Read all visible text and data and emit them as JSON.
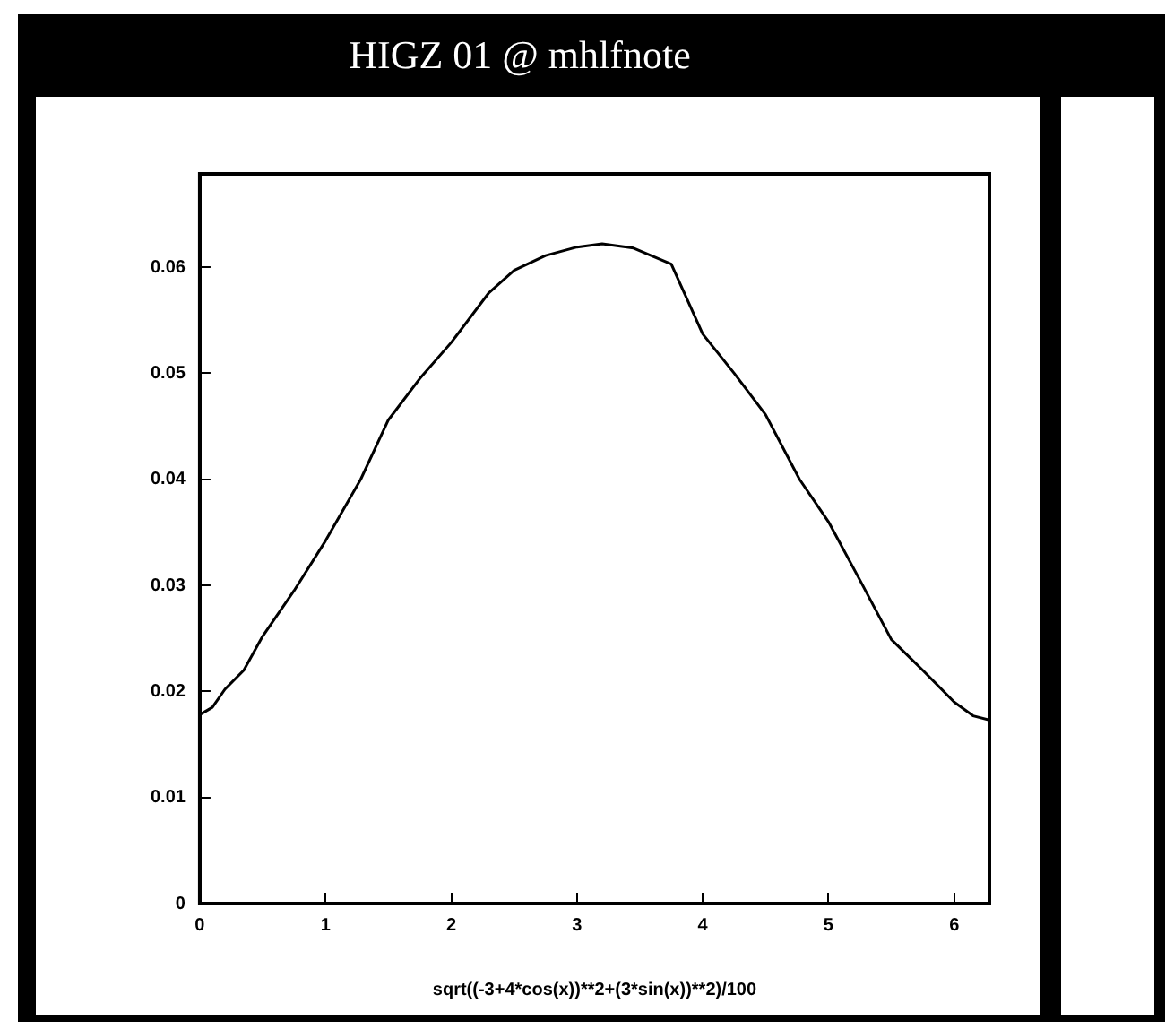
{
  "chart_data": {
    "type": "line",
    "title": "HIGZ 01 @ mhlfnote",
    "xlabel": "sqrt((-3+4*cos(x))**2+(3*sin(x))**2)/100",
    "x": [
      0,
      0.1,
      0.2,
      0.35,
      0.5,
      0.75,
      1,
      1.28,
      1.5,
      1.75,
      2,
      2.3,
      2.5,
      2.75,
      3,
      3.2,
      3.45,
      3.75,
      4,
      4.25,
      4.5,
      4.77,
      5,
      5.25,
      5.5,
      5.75,
      6,
      6.15,
      6.28
    ],
    "series": [
      {
        "color": "#000000",
        "values": [
          0.0178,
          0.0185,
          0.0202,
          0.022,
          0.0252,
          0.0295,
          0.0342,
          0.04,
          0.0456,
          0.0495,
          0.0529,
          0.0576,
          0.0597,
          0.0611,
          0.0619,
          0.0622,
          0.0618,
          0.0603,
          0.0537,
          0.05,
          0.0461,
          0.04,
          0.036,
          0.0305,
          0.0249,
          0.022,
          0.019,
          0.0177,
          0.0173
        ]
      }
    ],
    "xlim": [
      0,
      6.28
    ],
    "ylim": [
      0,
      0.0688
    ],
    "xticks": [
      0,
      1,
      2,
      3,
      4,
      5,
      6
    ],
    "yticks": [
      0,
      0.01,
      0.02,
      0.03,
      0.04,
      0.05,
      0.06
    ],
    "grid": false,
    "legend": false,
    "marker": "none",
    "line_style": "solid"
  }
}
